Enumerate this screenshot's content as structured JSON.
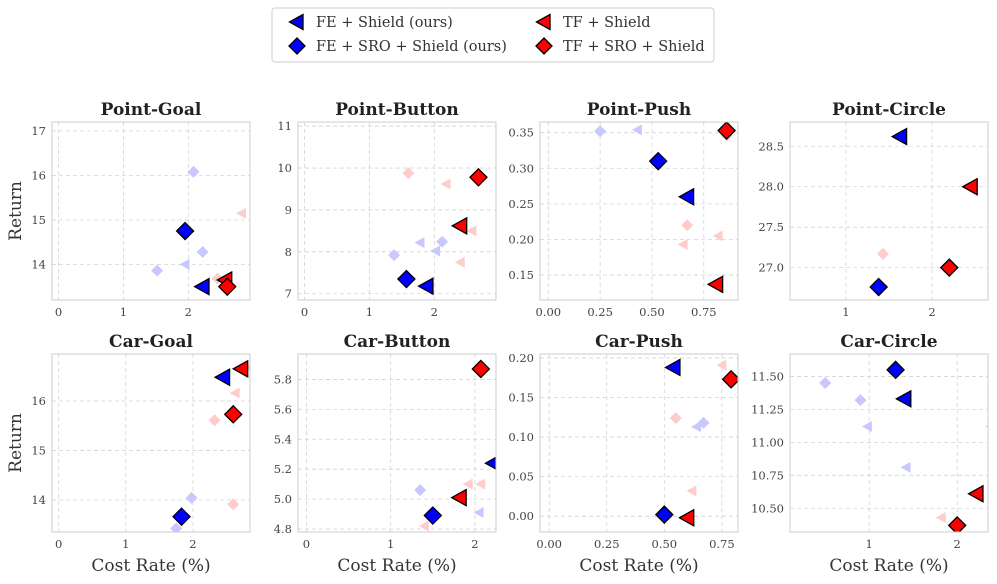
{
  "legend": {
    "entries": [
      {
        "label": "FE + Shield (ours)",
        "marker": "triangle-left",
        "color": "#0000ff"
      },
      {
        "label": "FE + SRO + Shield (ours)",
        "marker": "diamond",
        "color": "#0000ff"
      },
      {
        "label": "TF + Shield",
        "marker": "triangle-left",
        "color": "#ff0000"
      },
      {
        "label": "TF + SRO + Shield",
        "marker": "diamond",
        "color": "#ff0000"
      }
    ]
  },
  "colors": {
    "blue": "#0000ff",
    "red": "#ff0000",
    "blue_faint": "#c8c8ff",
    "red_faint": "#ffcccc"
  },
  "chart_data": [
    {
      "type": "scatter",
      "title": "Point-Goal",
      "xlim": [
        -0.1,
        2.95
      ],
      "ylim": [
        13.2,
        17.2
      ],
      "xticks": [
        0,
        1,
        2
      ],
      "xtick_labels": [
        "0",
        "1",
        "2"
      ],
      "yticks": [
        14,
        15,
        16,
        17
      ],
      "ytick_labels": [
        "14",
        "15",
        "16",
        "17"
      ],
      "points": [
        {
          "series": "FE + Shield (ours)",
          "x": 2.22,
          "y": 13.5,
          "emphasis": true
        },
        {
          "series": "FE + SRO + Shield (ours)",
          "x": 1.95,
          "y": 14.75,
          "emphasis": true
        },
        {
          "series": "TF + Shield",
          "x": 2.57,
          "y": 13.65,
          "emphasis": true
        },
        {
          "series": "TF + SRO + Shield",
          "x": 2.6,
          "y": 13.5,
          "emphasis": true
        },
        {
          "series": "FE + SRO + Shield (ours)",
          "x": 2.08,
          "y": 16.08,
          "emphasis": false
        },
        {
          "series": "FE + SRO + Shield (ours)",
          "x": 2.22,
          "y": 14.28,
          "emphasis": false
        },
        {
          "series": "FE + SRO + Shield (ours)",
          "x": 1.52,
          "y": 13.86,
          "emphasis": false
        },
        {
          "series": "FE + Shield (ours)",
          "x": 1.95,
          "y": 14.0,
          "emphasis": false
        },
        {
          "series": "TF + Shield",
          "x": 2.82,
          "y": 15.15,
          "emphasis": false
        },
        {
          "series": "TF + SRO + Shield",
          "x": 2.45,
          "y": 13.68,
          "emphasis": false
        }
      ]
    },
    {
      "type": "scatter",
      "title": "Point-Button",
      "xlim": [
        -0.1,
        2.95
      ],
      "ylim": [
        6.85,
        11.1
      ],
      "xticks": [
        0,
        1,
        2
      ],
      "xtick_labels": [
        "0",
        "1",
        "2"
      ],
      "yticks": [
        7,
        8,
        9,
        10,
        11
      ],
      "ytick_labels": [
        "7",
        "8",
        "9",
        "10",
        "11"
      ],
      "points": [
        {
          "series": "FE + Shield (ours)",
          "x": 1.88,
          "y": 7.18,
          "emphasis": true
        },
        {
          "series": "FE + SRO + Shield (ours)",
          "x": 1.57,
          "y": 7.35,
          "emphasis": true
        },
        {
          "series": "TF + Shield",
          "x": 2.4,
          "y": 8.62,
          "emphasis": true
        },
        {
          "series": "TF + SRO + Shield",
          "x": 2.68,
          "y": 9.78,
          "emphasis": true
        },
        {
          "series": "FE + SRO + Shield (ours)",
          "x": 1.38,
          "y": 7.92,
          "emphasis": false
        },
        {
          "series": "FE + SRO + Shield (ours)",
          "x": 2.12,
          "y": 8.24,
          "emphasis": false
        },
        {
          "series": "FE + Shield (ours)",
          "x": 1.78,
          "y": 8.22,
          "emphasis": false
        },
        {
          "series": "FE + Shield (ours)",
          "x": 2.02,
          "y": 8.02,
          "emphasis": false
        },
        {
          "series": "TF + SRO + Shield",
          "x": 1.6,
          "y": 9.88,
          "emphasis": false
        },
        {
          "series": "TF + Shield",
          "x": 2.18,
          "y": 9.62,
          "emphasis": false
        },
        {
          "series": "TF + Shield",
          "x": 2.58,
          "y": 8.5,
          "emphasis": false
        },
        {
          "series": "TF + Shield",
          "x": 2.4,
          "y": 7.75,
          "emphasis": false
        }
      ]
    },
    {
      "type": "scatter",
      "title": "Point-Push",
      "xlim": [
        -0.04,
        0.915
      ],
      "ylim": [
        0.115,
        0.365
      ],
      "xticks": [
        0.0,
        0.25,
        0.5,
        0.75
      ],
      "xtick_labels": [
        "0.00",
        "0.25",
        "0.50",
        "0.75"
      ],
      "yticks": [
        0.15,
        0.2,
        0.25,
        0.3,
        0.35
      ],
      "ytick_labels": [
        "0.15",
        "0.20",
        "0.25",
        "0.30",
        "0.35"
      ],
      "points": [
        {
          "series": "FE + Shield (ours)",
          "x": 0.67,
          "y": 0.26,
          "emphasis": true
        },
        {
          "series": "FE + SRO + Shield (ours)",
          "x": 0.53,
          "y": 0.31,
          "emphasis": true
        },
        {
          "series": "TF + Shield",
          "x": 0.81,
          "y": 0.137,
          "emphasis": true
        },
        {
          "series": "TF + SRO + Shield",
          "x": 0.86,
          "y": 0.353,
          "emphasis": true
        },
        {
          "series": "FE + SRO + Shield (ours)",
          "x": 0.25,
          "y": 0.352,
          "emphasis": false
        },
        {
          "series": "FE + Shield (ours)",
          "x": 0.43,
          "y": 0.354,
          "emphasis": false
        },
        {
          "series": "TF + SRO + Shield",
          "x": 0.67,
          "y": 0.22,
          "emphasis": false
        },
        {
          "series": "TF + Shield",
          "x": 0.65,
          "y": 0.193,
          "emphasis": false
        },
        {
          "series": "TF + Shield",
          "x": 0.82,
          "y": 0.205,
          "emphasis": false
        },
        {
          "series": "TF + SRO + Shield",
          "x": 0.86,
          "y": 0.346,
          "emphasis": false
        }
      ]
    },
    {
      "type": "scatter",
      "title": "Point-Circle",
      "xlim": [
        0.35,
        2.65
      ],
      "ylim": [
        26.6,
        28.8
      ],
      "xticks": [
        1,
        2
      ],
      "xtick_labels": [
        "1",
        "2"
      ],
      "yticks": [
        27.0,
        27.5,
        28.0,
        28.5
      ],
      "ytick_labels": [
        "27.0",
        "27.5",
        "28.0",
        "28.5"
      ],
      "points": [
        {
          "series": "FE + Shield (ours)",
          "x": 1.63,
          "y": 28.62,
          "emphasis": true
        },
        {
          "series": "FE + SRO + Shield (ours)",
          "x": 1.38,
          "y": 26.76,
          "emphasis": true
        },
        {
          "series": "TF + Shield",
          "x": 2.45,
          "y": 28.0,
          "emphasis": true
        },
        {
          "series": "TF + SRO + Shield",
          "x": 2.2,
          "y": 27.0,
          "emphasis": true
        },
        {
          "series": "TF + SRO + Shield",
          "x": 1.43,
          "y": 27.17,
          "emphasis": false
        }
      ]
    },
    {
      "type": "scatter",
      "title": "Car-Goal",
      "xlim": [
        -0.1,
        2.85
      ],
      "ylim": [
        13.35,
        16.95
      ],
      "xticks": [
        0,
        1,
        2
      ],
      "xtick_labels": [
        "0",
        "1",
        "2"
      ],
      "yticks": [
        14,
        15,
        16
      ],
      "ytick_labels": [
        "14",
        "15",
        "16"
      ],
      "points": [
        {
          "series": "FE + Shield (ours)",
          "x": 2.45,
          "y": 16.48,
          "emphasis": true
        },
        {
          "series": "FE + SRO + Shield (ours)",
          "x": 1.83,
          "y": 13.66,
          "emphasis": true
        },
        {
          "series": "TF + Shield",
          "x": 2.72,
          "y": 16.65,
          "emphasis": true
        },
        {
          "series": "TF + SRO + Shield",
          "x": 2.6,
          "y": 15.73,
          "emphasis": true
        },
        {
          "series": "FE + SRO + Shield (ours)",
          "x": 1.98,
          "y": 14.04,
          "emphasis": false
        },
        {
          "series": "FE + SRO + Shield (ours)",
          "x": 1.75,
          "y": 13.42,
          "emphasis": false
        },
        {
          "series": "TF + Shield",
          "x": 2.63,
          "y": 16.16,
          "emphasis": false
        },
        {
          "series": "TF + SRO + Shield",
          "x": 2.32,
          "y": 15.61,
          "emphasis": false
        },
        {
          "series": "TF + SRO + Shield",
          "x": 2.6,
          "y": 13.91,
          "emphasis": false
        },
        {
          "series": "TF + SRO + Shield",
          "x": 2.78,
          "y": 16.68,
          "emphasis": false
        }
      ]
    },
    {
      "type": "scatter",
      "title": "Car-Button",
      "xlim": [
        -0.1,
        2.25
      ],
      "ylim": [
        4.78,
        5.97
      ],
      "xticks": [
        0,
        1,
        2
      ],
      "xtick_labels": [
        "0",
        "1",
        "2"
      ],
      "yticks": [
        4.8,
        5.0,
        5.2,
        5.4,
        5.6,
        5.8
      ],
      "ytick_labels": [
        "4.8",
        "5.0",
        "5.2",
        "5.4",
        "5.6",
        "5.8"
      ],
      "points": [
        {
          "series": "FE + Shield (ours)",
          "x": 2.22,
          "y": 5.24,
          "emphasis": true
        },
        {
          "series": "FE + SRO + Shield (ours)",
          "x": 1.5,
          "y": 4.89,
          "emphasis": true
        },
        {
          "series": "TF + Shield",
          "x": 1.82,
          "y": 5.01,
          "emphasis": true
        },
        {
          "series": "TF + SRO + Shield",
          "x": 2.07,
          "y": 5.87,
          "emphasis": true
        },
        {
          "series": "FE + SRO + Shield (ours)",
          "x": 1.35,
          "y": 5.06,
          "emphasis": false
        },
        {
          "series": "FE + Shield (ours)",
          "x": 2.05,
          "y": 4.91,
          "emphasis": false
        },
        {
          "series": "TF + Shield",
          "x": 1.92,
          "y": 5.1,
          "emphasis": false
        },
        {
          "series": "TF + Shield",
          "x": 2.07,
          "y": 5.1,
          "emphasis": false
        },
        {
          "series": "TF + Shield",
          "x": 1.4,
          "y": 4.82,
          "emphasis": false
        }
      ]
    },
    {
      "type": "scatter",
      "title": "Car-Push",
      "xlim": [
        -0.04,
        0.82
      ],
      "ylim": [
        -0.02,
        0.205
      ],
      "xticks": [
        0.0,
        0.25,
        0.5,
        0.75
      ],
      "xtick_labels": [
        "0.00",
        "0.25",
        "0.50",
        "0.75"
      ],
      "yticks": [
        0.0,
        0.05,
        0.1,
        0.15,
        0.2
      ],
      "ytick_labels": [
        "0.00",
        "0.05",
        "0.10",
        "0.15",
        "0.20"
      ],
      "points": [
        {
          "series": "FE + Shield (ours)",
          "x": 0.54,
          "y": 0.188,
          "emphasis": true
        },
        {
          "series": "FE + SRO + Shield (ours)",
          "x": 0.5,
          "y": 0.002,
          "emphasis": true
        },
        {
          "series": "TF + Shield",
          "x": 0.6,
          "y": -0.002,
          "emphasis": true
        },
        {
          "series": "TF + SRO + Shield",
          "x": 0.79,
          "y": 0.173,
          "emphasis": true
        },
        {
          "series": "FE + SRO + Shield (ours)",
          "x": 0.67,
          "y": 0.118,
          "emphasis": false
        },
        {
          "series": "FE + Shield (ours)",
          "x": 0.64,
          "y": 0.113,
          "emphasis": false
        },
        {
          "series": "TF + SRO + Shield",
          "x": 0.55,
          "y": 0.124,
          "emphasis": false
        },
        {
          "series": "TF + Shield",
          "x": 0.62,
          "y": 0.032,
          "emphasis": false
        },
        {
          "series": "TF + Shield",
          "x": 0.75,
          "y": 0.191,
          "emphasis": false
        }
      ]
    },
    {
      "type": "scatter",
      "title": "Car-Circle",
      "xlim": [
        0.1,
        2.35
      ],
      "ylim": [
        10.32,
        11.67
      ],
      "xticks": [
        1,
        2
      ],
      "xtick_labels": [
        "1",
        "2"
      ],
      "yticks": [
        10.5,
        10.75,
        11.0,
        11.25,
        11.5
      ],
      "ytick_labels": [
        "10.50",
        "10.75",
        "11.00",
        "11.25",
        "11.50"
      ],
      "points": [
        {
          "series": "FE + Shield (ours)",
          "x": 1.4,
          "y": 11.33,
          "emphasis": true
        },
        {
          "series": "FE + SRO + Shield (ours)",
          "x": 1.3,
          "y": 11.55,
          "emphasis": true
        },
        {
          "series": "TF + Shield",
          "x": 2.22,
          "y": 10.61,
          "emphasis": true
        },
        {
          "series": "TF + SRO + Shield",
          "x": 2.0,
          "y": 10.37,
          "emphasis": true
        },
        {
          "series": "FE + SRO + Shield (ours)",
          "x": 0.5,
          "y": 11.45,
          "emphasis": false
        },
        {
          "series": "FE + SRO + Shield (ours)",
          "x": 0.9,
          "y": 11.32,
          "emphasis": false
        },
        {
          "series": "FE + Shield (ours)",
          "x": 0.98,
          "y": 11.12,
          "emphasis": false
        },
        {
          "series": "FE + Shield (ours)",
          "x": 1.42,
          "y": 10.81,
          "emphasis": false
        },
        {
          "series": "TF + Shield",
          "x": 1.82,
          "y": 10.43,
          "emphasis": false
        },
        {
          "series": "TF + Shield",
          "x": 2.38,
          "y": 11.12,
          "emphasis": false
        }
      ]
    }
  ],
  "axes": {
    "xlabel": "Cost Rate (%)",
    "ylabel": "Return"
  }
}
